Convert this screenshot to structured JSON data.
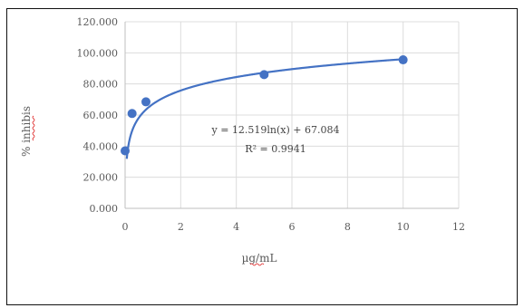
{
  "chart_data": {
    "type": "scatter",
    "title": "",
    "xlabel_parts": [
      "µg",
      "/mL"
    ],
    "ylabel_parts": [
      "% ",
      "inhibis"
    ],
    "x_ticks": [
      "0",
      "2",
      "4",
      "6",
      "8",
      "10",
      "12"
    ],
    "y_ticks": [
      "0.000",
      "20.000",
      "40.000",
      "60.000",
      "80.000",
      "100.000",
      "120.000"
    ],
    "xlim": [
      0,
      12
    ],
    "ylim": [
      0,
      120
    ],
    "grid": true,
    "series": [
      {
        "points": [
          {
            "x": 0.0,
            "y": 37.0
          },
          {
            "x": 0.25,
            "y": 61.0
          },
          {
            "x": 0.75,
            "y": 68.5
          },
          {
            "x": 5.0,
            "y": 86.0
          },
          {
            "x": 10.0,
            "y": 95.5
          }
        ],
        "color": "#4472c4"
      }
    ],
    "trendline": {
      "type": "logarithmic",
      "slope": 12.519,
      "intercept": 67.084,
      "color": "#4472c4"
    },
    "annotations": {
      "equation": "y = 12.519ln(x) + 67.084",
      "r_squared": "R² = 0.9941"
    }
  }
}
